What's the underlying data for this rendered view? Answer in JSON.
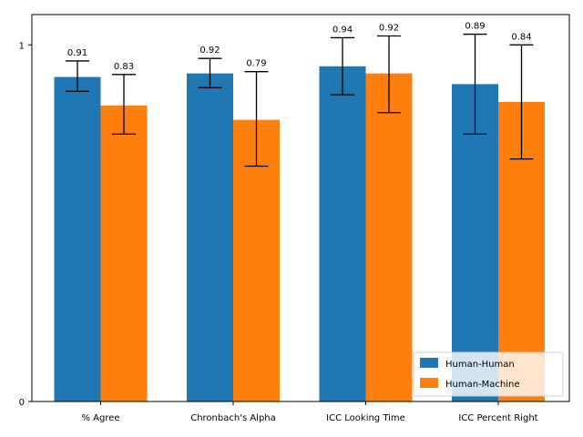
{
  "chart_data": {
    "type": "bar",
    "categories": [
      "% Agree",
      "Chronbach's Alpha",
      "ICC Looking Time",
      "ICC Percent Right"
    ],
    "series": [
      {
        "name": "Human-Human",
        "color": "#1f77b4",
        "values": [
          0.91,
          0.92,
          0.94,
          0.89
        ],
        "error_low": [
          0.87,
          0.88,
          0.86,
          0.75
        ],
        "error_high": [
          0.955,
          0.962,
          1.02,
          1.03
        ],
        "labels": [
          "0.91",
          "0.92",
          "0.94",
          "0.89"
        ]
      },
      {
        "name": "Human-Machine",
        "color": "#ff7f0e",
        "values": [
          0.83,
          0.79,
          0.92,
          0.84
        ],
        "error_low": [
          0.75,
          0.66,
          0.81,
          0.68
        ],
        "error_high": [
          0.917,
          0.925,
          1.025,
          1.0
        ],
        "labels": [
          "0.83",
          "0.79",
          "0.92",
          "0.84"
        ]
      }
    ],
    "yticks": [
      "0",
      "1"
    ],
    "ylim": [
      0,
      1.085
    ],
    "legend_position": "lower-right",
    "title": "",
    "xlabel": "",
    "ylabel": ""
  }
}
